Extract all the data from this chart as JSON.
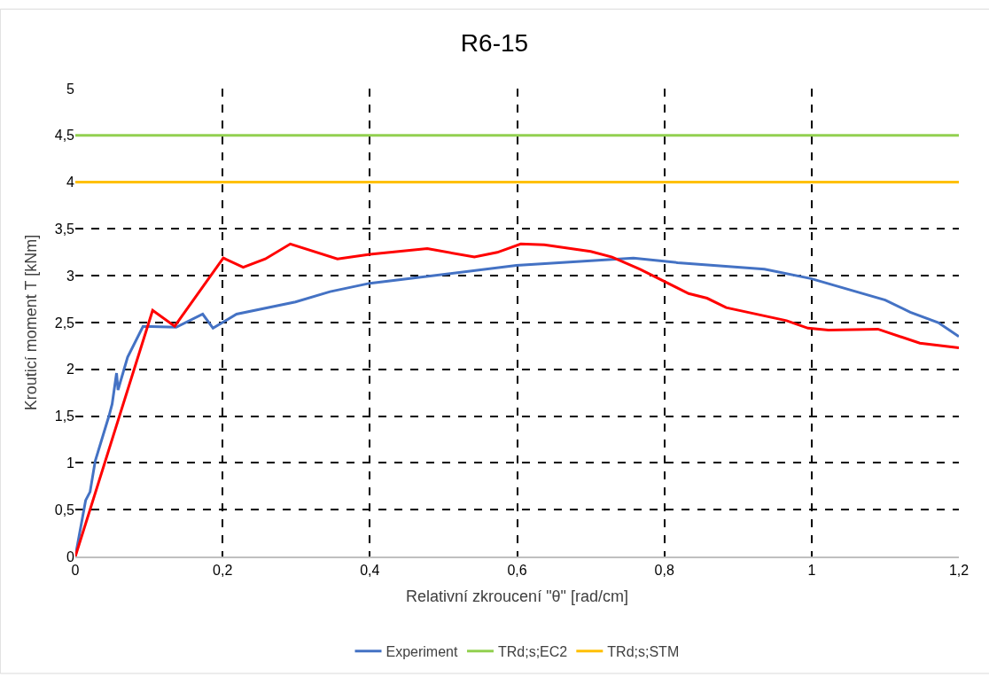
{
  "chart_data": {
    "type": "line",
    "title": "R6-15",
    "xlabel": "Relativní zkroucení \"θ\" [rad/cm]",
    "ylabel": "Krouticí moment T [kNm]",
    "series": [
      {
        "name": "Experiment",
        "color": "#4472c4",
        "x": [
          0,
          0.014,
          0.02,
          0.027,
          0.046,
          0.05,
          0.056,
          0.058,
          0.071,
          0.092,
          0.137,
          0.173,
          0.187,
          0.219,
          0.299,
          0.346,
          0.4,
          0.599,
          0.758,
          0.818,
          0.936,
          0.999,
          1.1,
          1.134,
          1.172,
          1.2
        ],
        "values": [
          0,
          0.6,
          0.69,
          1.02,
          1.51,
          1.63,
          1.96,
          1.78,
          2.13,
          2.46,
          2.45,
          2.59,
          2.44,
          2.59,
          2.72,
          2.83,
          2.92,
          3.11,
          3.19,
          3.14,
          3.07,
          2.97,
          2.74,
          2.61,
          2.5,
          2.35
        ]
      },
      {
        "color": "#ff0000",
        "x": [
          0,
          0.105,
          0.135,
          0.201,
          0.228,
          0.258,
          0.292,
          0.356,
          0.4,
          0.478,
          0.542,
          0.573,
          0.605,
          0.637,
          0.7,
          0.729,
          0.767,
          0.833,
          0.858,
          0.884,
          0.966,
          0.995,
          1.023,
          1.09,
          1.147,
          1.2
        ],
        "values": [
          0,
          2.63,
          2.46,
          3.19,
          3.09,
          3.18,
          3.34,
          3.18,
          3.23,
          3.29,
          3.2,
          3.25,
          3.34,
          3.33,
          3.26,
          3.2,
          3.07,
          2.81,
          2.76,
          2.66,
          2.52,
          2.44,
          2.42,
          2.43,
          2.28,
          2.23
        ]
      }
    ],
    "ref_lines": [
      {
        "axis": "y",
        "value": 4.5,
        "label": "TRd;s;EC2",
        "color": "#92d050",
        "line_style": "solid"
      },
      {
        "axis": "y",
        "value": 4,
        "label": "TRd;s;STM",
        "color": "#ffc000",
        "line_style": "solid"
      }
    ],
    "xlim": [
      0,
      1.2
    ],
    "xticks": [
      0,
      {
        "value": 0.2,
        "label": "0,2"
      },
      {
        "value": 0.4,
        "label": "0,4"
      },
      {
        "value": 0.6,
        "label": "0,6"
      },
      {
        "value": 0.8,
        "label": "0,8"
      },
      1,
      {
        "value": 1.2,
        "label": "1,2"
      }
    ],
    "ylim": [
      0,
      5
    ],
    "yticks": [
      0,
      {
        "value": 0.5,
        "label": "0,5"
      },
      1,
      {
        "value": 1.5,
        "label": "1,5"
      },
      2,
      {
        "value": 2.5,
        "label": "2,5"
      },
      3,
      {
        "value": 3.5,
        "label": "3,5"
      },
      4,
      {
        "value": 4.5,
        "label": "4,5"
      },
      5
    ],
    "grid": true,
    "legend": "bottom",
    "line_style": "solid",
    "marker": "none"
  }
}
